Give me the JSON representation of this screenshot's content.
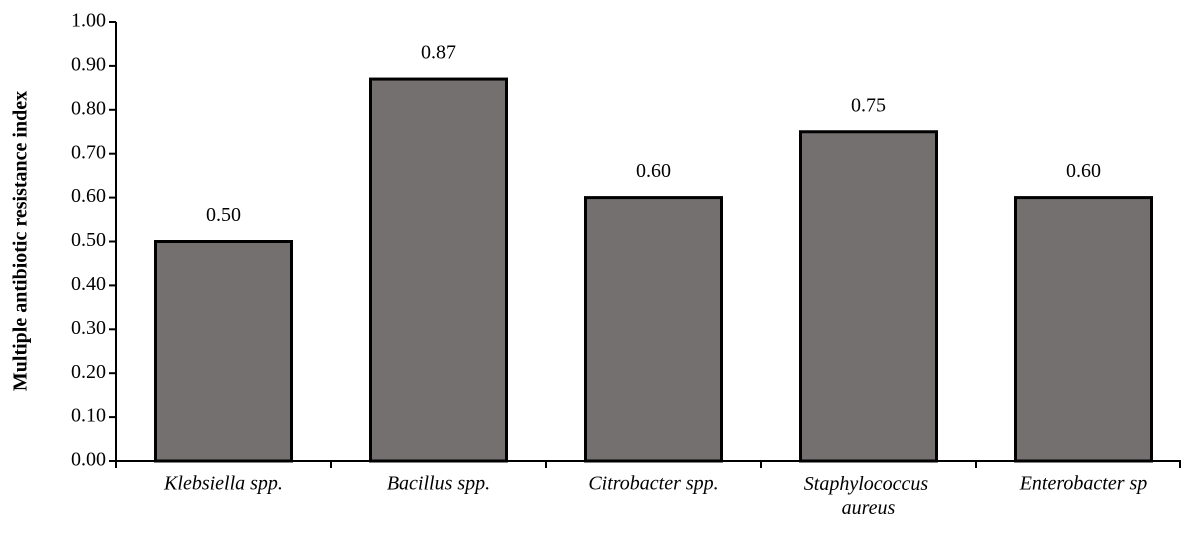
{
  "chart_data": {
    "type": "bar",
    "y_label": "Multiple antibiotic resistance index",
    "categories": [
      "Klebsiella spp.",
      "Bacillus spp.",
      "Citrobacter spp.",
      "Staphylococcus aureus",
      "Enterobacter sp"
    ],
    "values": [
      0.5,
      0.87,
      0.6,
      0.75,
      0.6
    ],
    "value_labels": [
      "0.50",
      "0.87",
      "0.60",
      "0.75",
      "0.60"
    ],
    "color": "#747070",
    "ylim": [
      0,
      1
    ],
    "yticks": [
      {
        "value": 0,
        "label": "0.00"
      },
      {
        "value": 0.1,
        "label": "0.10"
      },
      {
        "value": 0.2,
        "label": "0.20"
      },
      {
        "value": 0.3,
        "label": "0.30"
      },
      {
        "value": 0.4,
        "label": "0.40"
      },
      {
        "value": 0.5,
        "label": "0.50"
      },
      {
        "value": 0.6,
        "label": "0.60"
      },
      {
        "value": 0.7,
        "label": "0.70"
      },
      {
        "value": 0.8,
        "label": "0.80"
      },
      {
        "value": 0.9,
        "label": "0.90"
      },
      {
        "value": 1,
        "label": "1.00"
      }
    ],
    "grid": false
  }
}
